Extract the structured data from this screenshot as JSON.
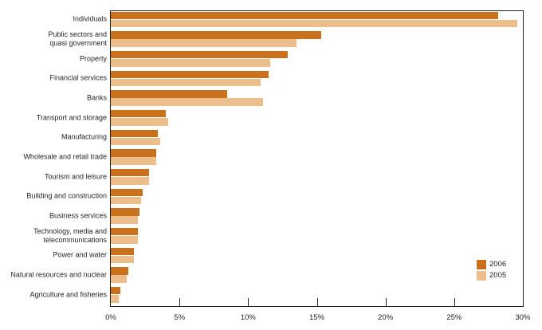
{
  "chart_data": {
    "type": "bar",
    "orientation": "horizontal",
    "title": "",
    "xlabel": "",
    "ylabel": "",
    "xlim": [
      0,
      30
    ],
    "x_ticks": [
      "0%",
      "5%",
      "10%",
      "15%",
      "20%",
      "25%",
      "30%"
    ],
    "grid": false,
    "legend_position": "lower-right",
    "categories": [
      "Individuals",
      "Public sectors and\nquasi government",
      "Property",
      "Financial services",
      "Banks",
      "Transport and storage",
      "Manufacturing",
      "Wholesale and retail trade",
      "Tourism and leisure",
      "Building and construction",
      "Business services",
      "Technology, media and\ntelecommunications",
      "Power and water",
      "Natural resources and nuclear",
      "Agriculture and fisheries"
    ],
    "series": [
      {
        "name": "2006",
        "color": "#c9711c",
        "values": [
          28.2,
          15.3,
          12.9,
          11.5,
          8.5,
          4.0,
          3.4,
          3.3,
          2.8,
          2.3,
          2.1,
          2.0,
          1.7,
          1.25,
          0.7
        ]
      },
      {
        "name": "2005",
        "color": "#ebbe8c",
        "values": [
          29.6,
          13.5,
          11.6,
          10.9,
          11.1,
          4.2,
          3.6,
          3.3,
          2.8,
          2.2,
          2.0,
          2.0,
          1.7,
          1.15,
          0.6
        ]
      }
    ]
  },
  "colors": {
    "frame": "#231f20",
    "text": "#231f20",
    "background": "#ffffff"
  }
}
